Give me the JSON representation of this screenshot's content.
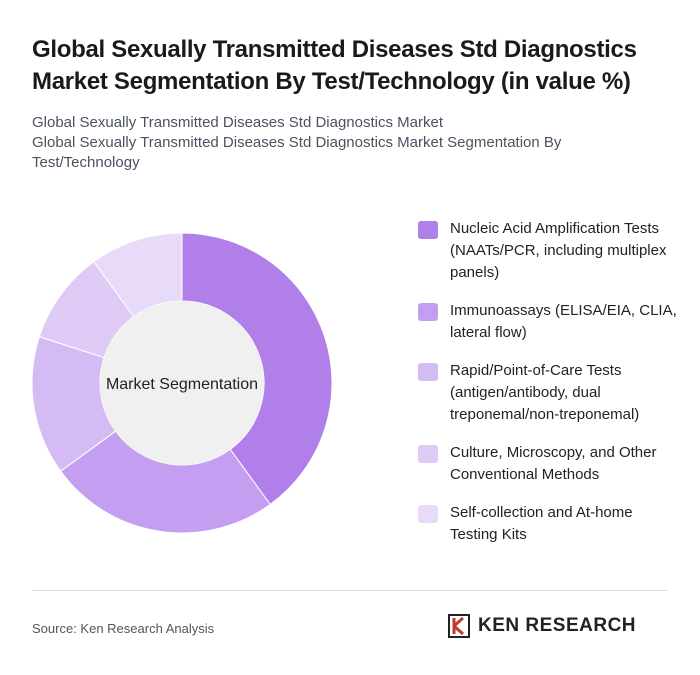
{
  "chart_data": {
    "type": "donut",
    "title": "Global Sexually Transmitted Diseases Std Diagnostics Market Segmentation By Test/Technology (in value %)",
    "subtitles": [
      "Global Sexually Transmitted Diseases Std Diagnostics Market",
      "Global Sexually Transmitted Diseases Std Diagnostics Market Segmentation By Test/Technology"
    ],
    "center_label": "Market Segmentation",
    "categories": [
      "Nucleic Acid Amplification Tests (NAATs/PCR, including multiplex panels)",
      "Immunoassays (ELISA/EIA, CLIA, lateral flow)",
      "Rapid/Point-of-Care Tests (antigen/antibody, dual treponemal/non-treponemal)",
      "Culture, Microscopy, and Other Conventional Methods",
      "Self-collection and At-home Testing Kits"
    ],
    "values": [
      40,
      25,
      15,
      10,
      10
    ],
    "colors": [
      "#b07fe9",
      "#c49ef0",
      "#d5bbf4",
      "#dfcaf6",
      "#e8dbf9"
    ],
    "source": "Source: Ken Research Analysis",
    "logo": "KEN RESEARCH"
  }
}
